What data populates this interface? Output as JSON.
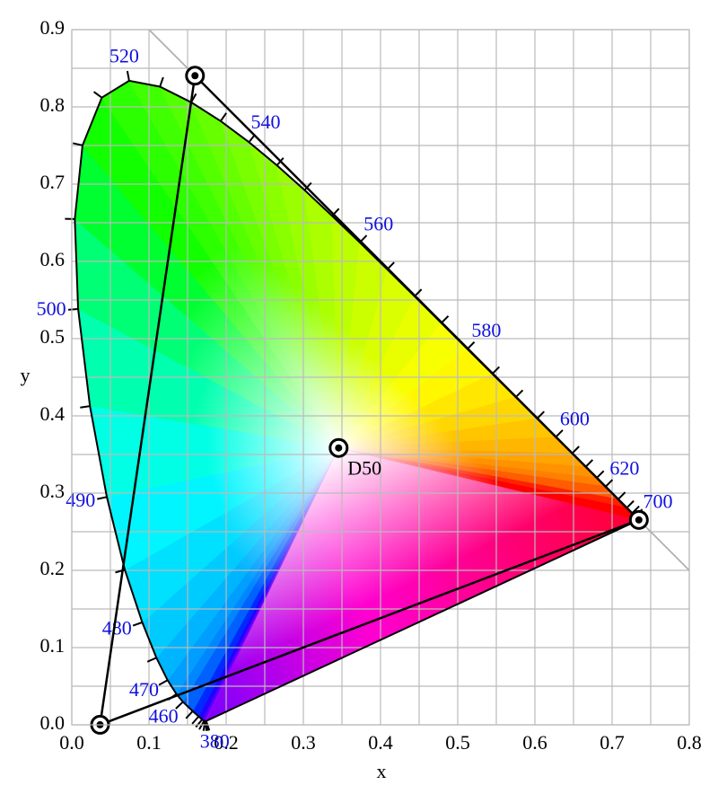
{
  "chart_data": {
    "type": "chromaticity",
    "x_label": "x",
    "y_label": "y",
    "xlim": [
      0,
      0.8
    ],
    "ylim": [
      0,
      0.9
    ],
    "xticks": [
      {
        "value": 0,
        "label": "0.0"
      },
      0.1,
      0.2,
      0.3,
      0.4,
      0.5,
      0.6,
      0.7,
      0.8
    ],
    "yticks": [
      {
        "value": 0,
        "label": "0.0"
      },
      0.1,
      0.2,
      0.3,
      0.4,
      0.5,
      0.6,
      0.7,
      0.8,
      0.9
    ],
    "minor_grid_x": [
      0.05,
      0.15,
      0.25,
      0.35,
      0.45,
      0.55,
      0.65,
      0.75
    ],
    "minor_grid_y": [
      0.05,
      0.15,
      0.25,
      0.35,
      0.45,
      0.55,
      0.65,
      0.75,
      0.85
    ],
    "grid": true,
    "reference_line": {
      "color": "#b0b0b0",
      "x": [
        0.1,
        0.8
      ],
      "y": [
        0.9,
        0.2
      ]
    },
    "locus": {
      "color": "#000000",
      "wavelengths": [
        380,
        null,
        null,
        null,
        null,
        null,
        null,
        null,
        460,
        null,
        470,
        null,
        480,
        null,
        490,
        null,
        500,
        null,
        null,
        null,
        520,
        null,
        null,
        null,
        540,
        null,
        null,
        null,
        560,
        null,
        null,
        null,
        580,
        null,
        null,
        null,
        600,
        null,
        null,
        null,
        620,
        null,
        null,
        null,
        null,
        null,
        700
      ],
      "x": [
        0.1741,
        0.1738,
        0.1733,
        0.1726,
        0.1714,
        0.1689,
        0.1644,
        0.1566,
        0.144,
        0.1355,
        0.1241,
        0.1096,
        0.0913,
        0.0687,
        0.0454,
        0.0235,
        0.0082,
        0.0039,
        0.0139,
        0.0389,
        0.0743,
        0.1142,
        0.1547,
        0.1929,
        0.2296,
        0.2658,
        0.3016,
        0.3373,
        0.3731,
        0.4087,
        0.4441,
        0.4788,
        0.5125,
        0.5448,
        0.5752,
        0.6029,
        0.627,
        0.6482,
        0.6658,
        0.6801,
        0.6915,
        0.7079,
        0.719,
        0.726,
        0.73,
        0.7334,
        0.7347
      ],
      "y": [
        0.005,
        0.0049,
        0.0048,
        0.0048,
        0.0051,
        0.0069,
        0.0109,
        0.0177,
        0.0297,
        0.0399,
        0.0578,
        0.0868,
        0.1327,
        0.2007,
        0.295,
        0.4127,
        0.5384,
        0.6548,
        0.7502,
        0.812,
        0.8338,
        0.8262,
        0.8059,
        0.7816,
        0.7543,
        0.7243,
        0.6923,
        0.6589,
        0.6245,
        0.5896,
        0.5547,
        0.5202,
        0.4866,
        0.4544,
        0.4242,
        0.3965,
        0.3725,
        0.3514,
        0.334,
        0.3197,
        0.3083,
        0.292,
        0.2809,
        0.274,
        0.27,
        0.2666,
        0.2653
      ]
    },
    "primaries": {
      "color": "#000000",
      "x": [
        0.7347,
        0.1596,
        0.0366
      ],
      "y": [
        0.2653,
        0.8404,
        0.0001
      ]
    },
    "white_point": {
      "label": "D50",
      "x": 0.3457,
      "y": 0.3585
    }
  }
}
